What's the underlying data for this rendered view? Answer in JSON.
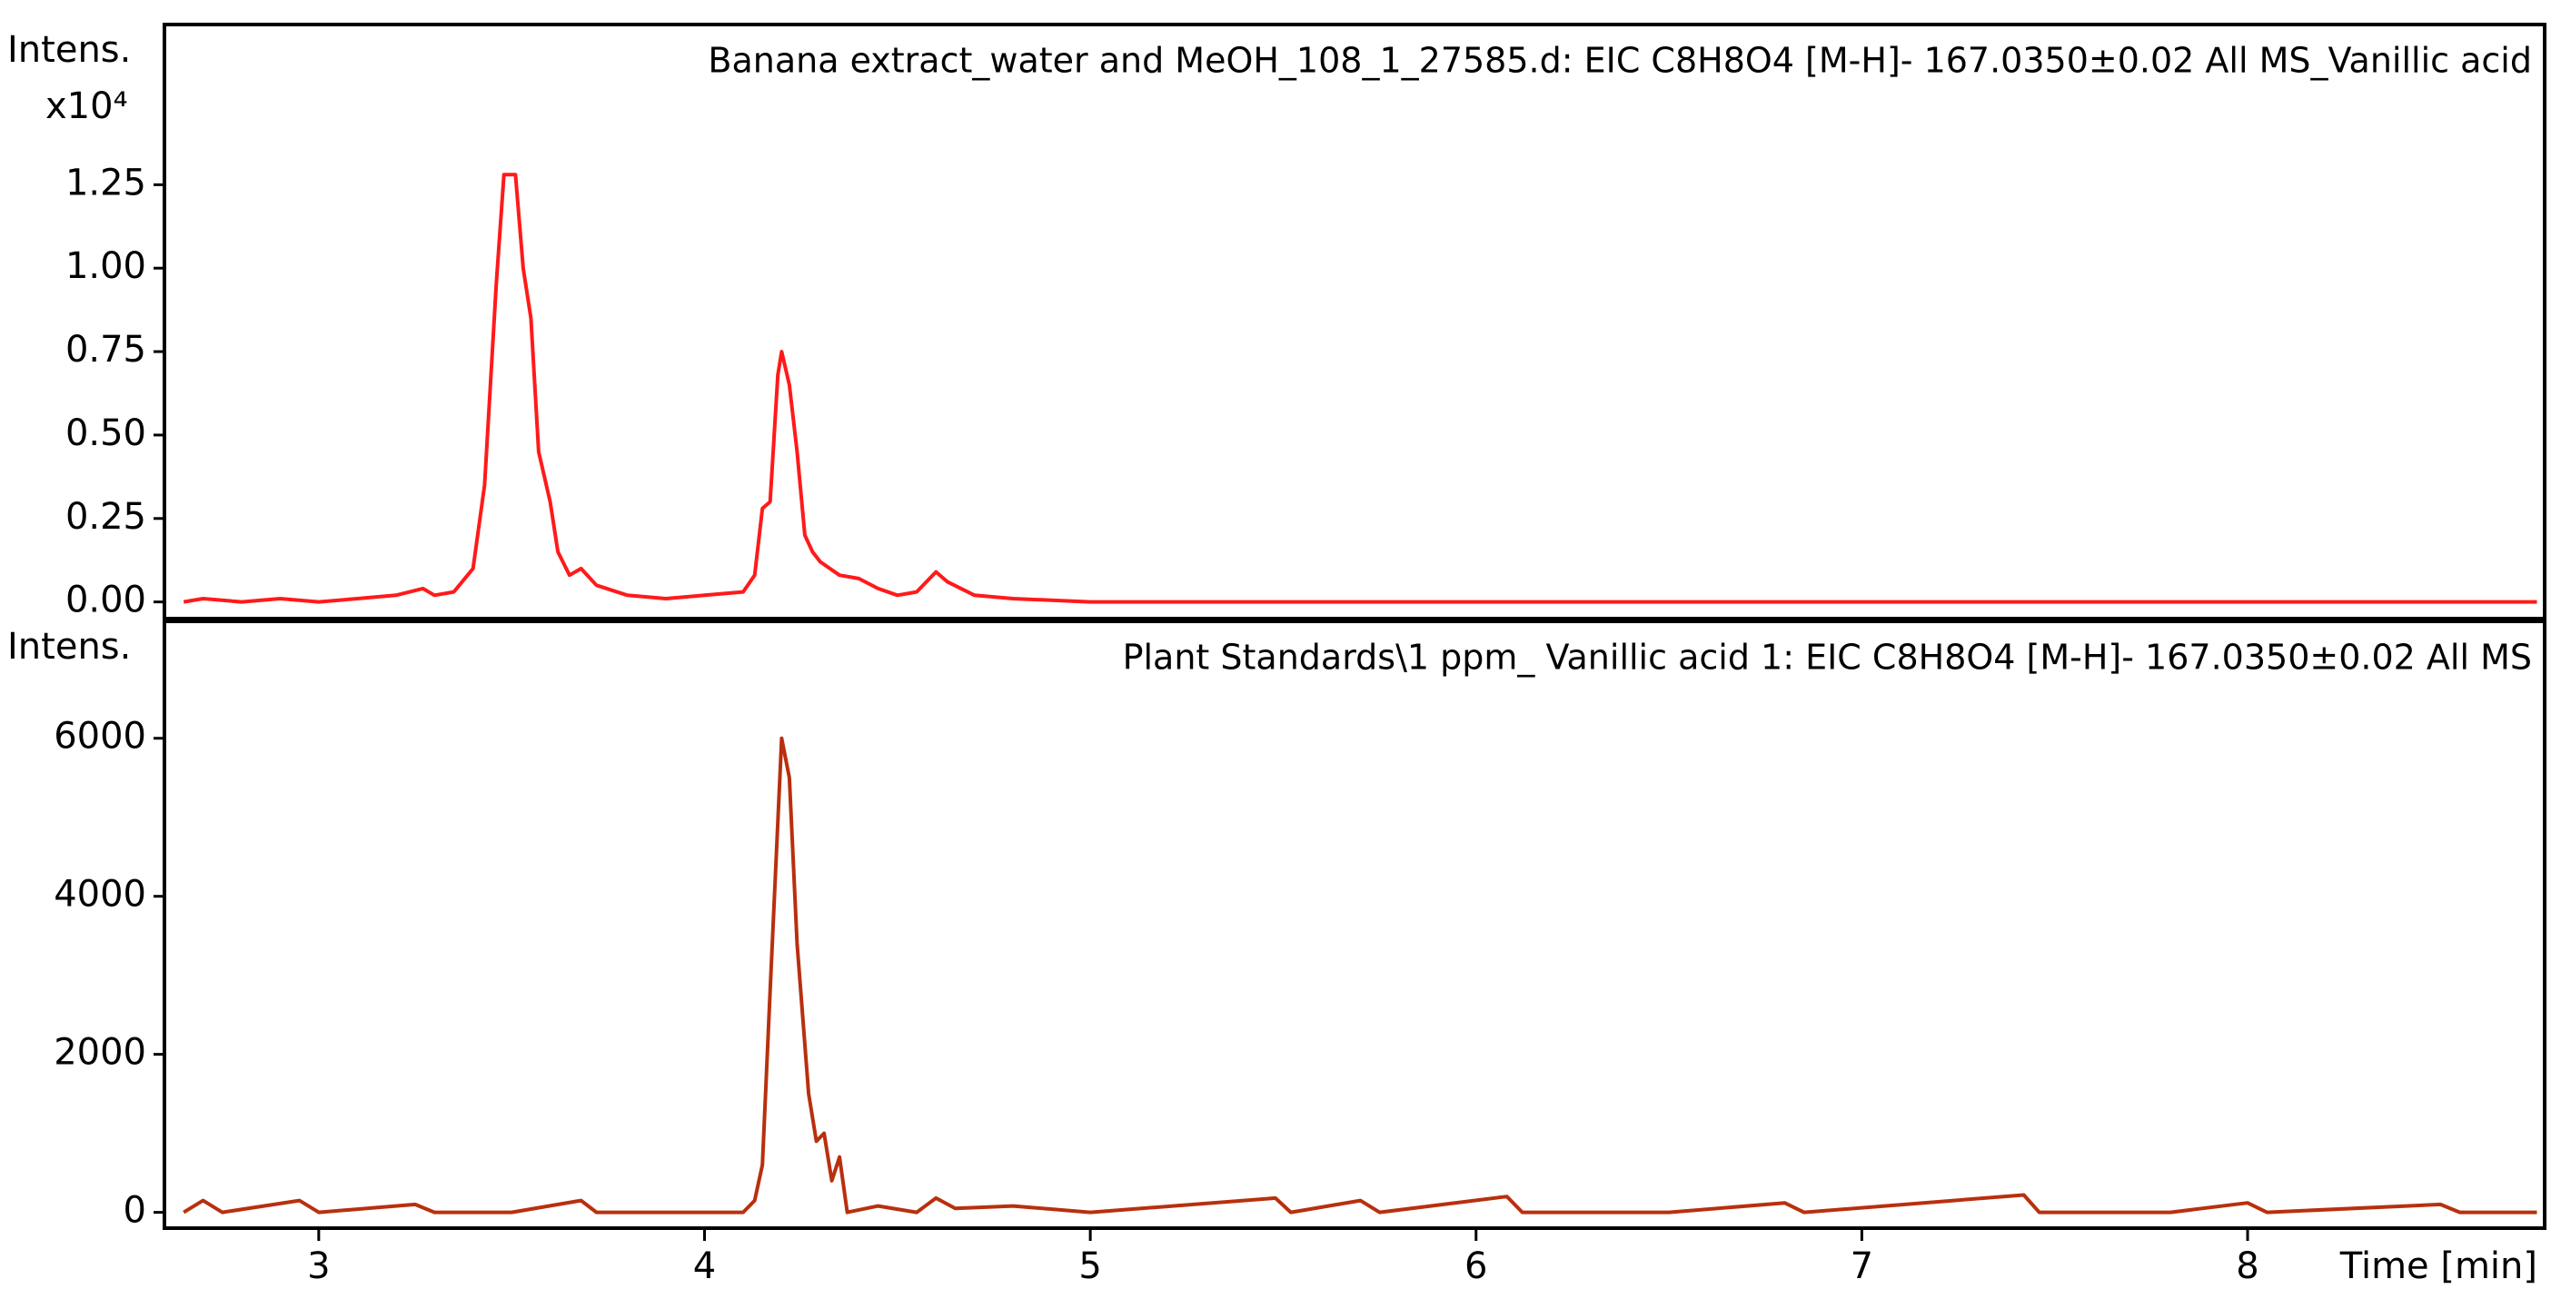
{
  "chart_data": [
    {
      "type": "line",
      "title": "Banana extract_water and MeOH_108_1_27585.d: EIC C8H8O4 [M-H]- 167.0350±0.02 All MS_Vanillic acid",
      "ylabel": "Intens.",
      "y_scale_label": "x10⁴",
      "xlim": [
        2.6,
        8.77
      ],
      "ylim": [
        -0.05,
        1.73
      ],
      "yticks": [
        {
          "value": 0,
          "label": "0.00"
        },
        {
          "value": 0.25,
          "label": "0.25"
        },
        {
          "value": 0.5,
          "label": "0.50"
        },
        {
          "value": 0.75,
          "label": "0.75"
        },
        {
          "value": 1,
          "label": "1.00"
        },
        {
          "value": 1.25,
          "label": "1.25"
        }
      ],
      "color": "#ff1a1a",
      "x": [
        2.65,
        2.7,
        2.8,
        2.9,
        3.0,
        3.1,
        3.2,
        3.27,
        3.3,
        3.35,
        3.4,
        3.43,
        3.46,
        3.48,
        3.51,
        3.53,
        3.55,
        3.57,
        3.6,
        3.62,
        3.65,
        3.68,
        3.72,
        3.8,
        3.9,
        4.0,
        4.1,
        4.13,
        4.15,
        4.17,
        4.19,
        4.2,
        4.22,
        4.24,
        4.26,
        4.28,
        4.3,
        4.35,
        4.4,
        4.45,
        4.5,
        4.55,
        4.6,
        4.63,
        4.7,
        4.8,
        5.0,
        5.2,
        5.5,
        6.0,
        6.5,
        7.0,
        7.5,
        8.0,
        8.5,
        8.75
      ],
      "values": [
        0.0,
        0.01,
        0.0,
        0.01,
        0.0,
        0.01,
        0.02,
        0.04,
        0.02,
        0.03,
        0.1,
        0.35,
        0.95,
        1.28,
        1.28,
        1.0,
        0.85,
        0.45,
        0.3,
        0.15,
        0.08,
        0.1,
        0.05,
        0.02,
        0.01,
        0.02,
        0.03,
        0.08,
        0.28,
        0.3,
        0.68,
        0.75,
        0.65,
        0.45,
        0.2,
        0.15,
        0.12,
        0.08,
        0.07,
        0.04,
        0.02,
        0.03,
        0.09,
        0.06,
        0.02,
        0.01,
        0.0,
        0.0,
        0.0,
        0.0,
        0.0,
        0.0,
        0.0,
        0.0,
        0.0,
        0.0
      ]
    },
    {
      "type": "line",
      "title": "Plant Standards\\1 ppm_ Vanillic acid 1: EIC C8H8O4 [M-H]- 167.0350±0.02 All MS",
      "ylabel": "Intens.",
      "xlabel": "Time [min]",
      "xlim": [
        2.6,
        8.77
      ],
      "ylim": [
        -200,
        7480
      ],
      "xticks": [
        3,
        4,
        5,
        6,
        7,
        8
      ],
      "yticks": [
        0,
        2000,
        4000,
        6000
      ],
      "color": "#b8300e",
      "x": [
        2.65,
        2.7,
        2.75,
        2.95,
        3.0,
        3.25,
        3.3,
        3.5,
        3.68,
        3.72,
        4.1,
        4.13,
        4.15,
        4.17,
        4.2,
        4.22,
        4.24,
        4.27,
        4.29,
        4.31,
        4.33,
        4.35,
        4.37,
        4.45,
        4.55,
        4.6,
        4.65,
        4.8,
        5.0,
        5.48,
        5.52,
        5.7,
        5.75,
        6.08,
        6.12,
        6.5,
        6.8,
        6.85,
        7.42,
        7.46,
        7.8,
        8.0,
        8.05,
        8.5,
        8.55,
        8.75
      ],
      "values": [
        0,
        150,
        0,
        150,
        0,
        100,
        0,
        0,
        150,
        0,
        0,
        150,
        600,
        2800,
        6000,
        5500,
        3400,
        1500,
        900,
        1000,
        400,
        700,
        0,
        80,
        0,
        180,
        50,
        80,
        0,
        180,
        0,
        150,
        0,
        200,
        0,
        0,
        120,
        0,
        220,
        0,
        0,
        120,
        0,
        100,
        0,
        0
      ]
    }
  ]
}
